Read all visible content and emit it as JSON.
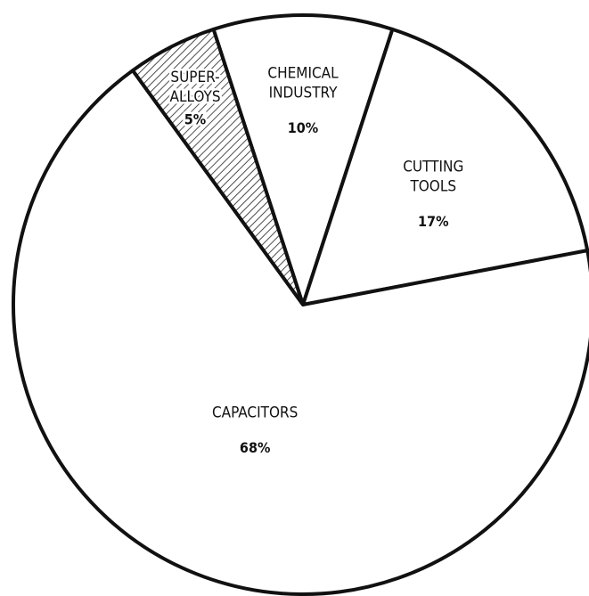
{
  "chart_data": {
    "type": "pie",
    "categories": [
      [
        "CHEMICAL",
        "INDUSTRY"
      ],
      [
        "CUTTING",
        "TOOLS"
      ],
      [
        "CAPACITORS"
      ],
      [
        "SUPER-",
        "ALLOYS"
      ]
    ],
    "values": [
      10,
      17,
      68,
      5
    ],
    "value_labels": [
      "10%",
      "17%",
      "68%",
      "5%"
    ],
    "colors": [
      "#ffffff",
      "#ffffff",
      "#ffffff",
      "#ffffff"
    ],
    "hatched": [
      false,
      false,
      false,
      true
    ]
  }
}
